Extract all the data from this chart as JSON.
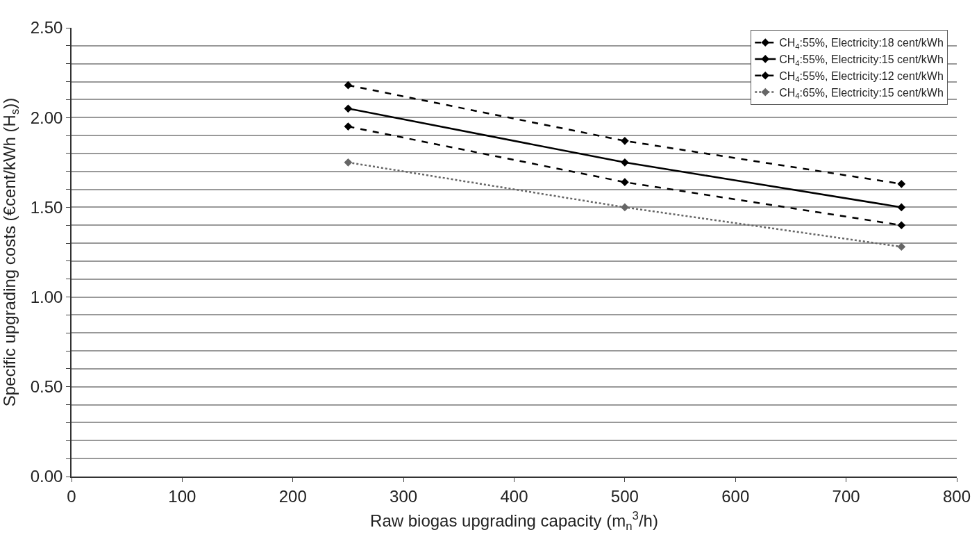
{
  "chart_data": {
    "type": "line",
    "xlabel": "Raw biogas upgrading capacity (m$_{n}$$^{3}$/h)",
    "ylabel": "Specific upgrading costs (€cent/kWh (H$_{s}$))",
    "x": [
      250,
      500,
      750
    ],
    "series": [
      {
        "name": "CH$_{4}$:55%, Electricity:18 cent/kWh",
        "color": "#000000",
        "line_style": "dashed",
        "values": [
          2.18,
          1.87,
          1.63
        ]
      },
      {
        "name": "CH$_{4}$:55%, Electricity:15 cent/kWh",
        "color": "#000000",
        "line_style": "solid",
        "values": [
          2.05,
          1.75,
          1.5
        ]
      },
      {
        "name": "CH$_{4}$:55%, Electricity:12 cent/kWh",
        "color": "#000000",
        "line_style": "dashed",
        "values": [
          1.95,
          1.64,
          1.4
        ]
      },
      {
        "name": "CH$_{4}$:65%, Electricity:15 cent/kWh",
        "color": "#666666",
        "line_style": "dotted",
        "values": [
          1.75,
          1.5,
          1.28
        ]
      }
    ],
    "xlim": [
      0,
      800
    ],
    "xticks": [
      0,
      100,
      200,
      300,
      400,
      500,
      600,
      700,
      800
    ],
    "ylim": [
      0,
      2.5
    ],
    "yticks": [
      {
        "value": 0,
        "label": "0.00"
      },
      {
        "value": 0.1,
        "label": null
      },
      {
        "value": 0.2,
        "label": null
      },
      {
        "value": 0.3,
        "label": null
      },
      {
        "value": 0.4,
        "label": null
      },
      {
        "value": 0.5,
        "label": "0.50"
      },
      {
        "value": 0.6,
        "label": null
      },
      {
        "value": 0.7,
        "label": null
      },
      {
        "value": 0.8,
        "label": null
      },
      {
        "value": 0.9,
        "label": null
      },
      {
        "value": 1.0,
        "label": "1.00"
      },
      {
        "value": 1.1,
        "label": null
      },
      {
        "value": 1.2,
        "label": null
      },
      {
        "value": 1.3,
        "label": null
      },
      {
        "value": 1.4,
        "label": null
      },
      {
        "value": 1.5,
        "label": "1.50"
      },
      {
        "value": 1.6,
        "label": null
      },
      {
        "value": 1.7,
        "label": null
      },
      {
        "value": 1.8,
        "label": null
      },
      {
        "value": 1.9,
        "label": null
      },
      {
        "value": 2.0,
        "label": "2.00"
      },
      {
        "value": 2.1,
        "label": null
      },
      {
        "value": 2.2,
        "label": null
      },
      {
        "value": 2.3,
        "label": null
      },
      {
        "value": 2.4,
        "label": null
      },
      {
        "value": 2.5,
        "label": "2.50"
      }
    ],
    "grid": "y",
    "legend": "top right",
    "marker": "diamond"
  }
}
